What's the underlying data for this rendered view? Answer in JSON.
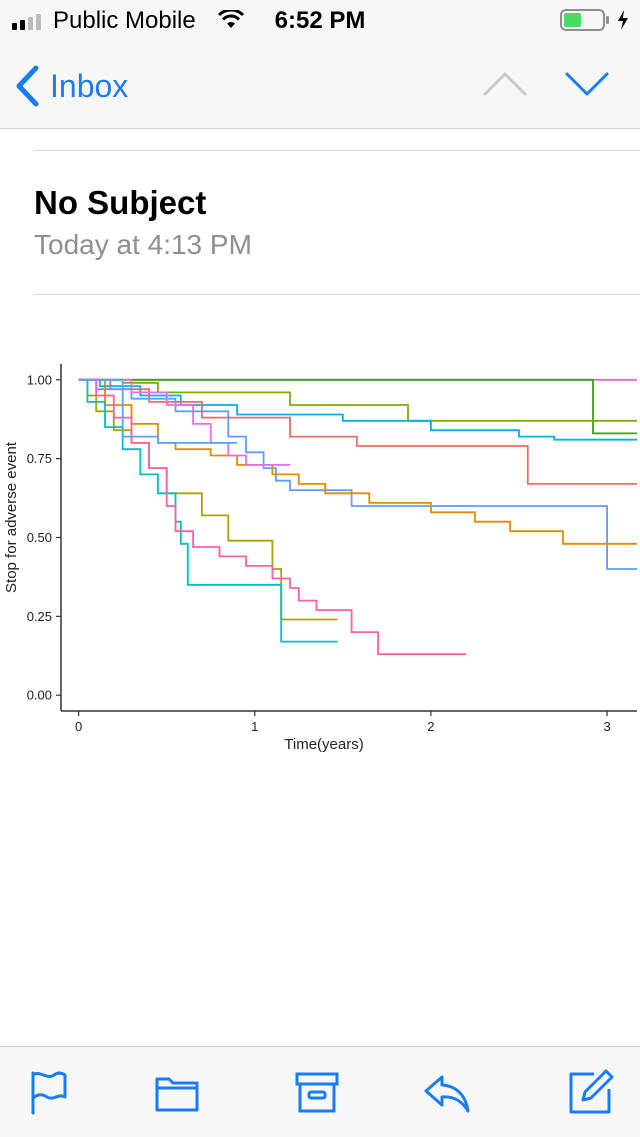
{
  "status_bar": {
    "carrier": "Public Mobile",
    "time": "6:52 PM",
    "battery_color": "#4cd964"
  },
  "nav": {
    "back_label": "Inbox",
    "accent_color": "#1a7cf5",
    "icons": [
      "chevron-left-icon",
      "chevron-up-icon",
      "chevron-down-icon"
    ]
  },
  "message": {
    "subject": "No Subject",
    "date": "Today at 4:13 PM"
  },
  "chart_data": {
    "type": "line",
    "title": "",
    "xlabel": "Time(years)",
    "ylabel": "Stop for adverse event",
    "xlim": [
      -0.1,
      3.17
    ],
    "ylim": [
      -0.05,
      1.05
    ],
    "xticks": [
      0,
      1,
      2,
      3
    ],
    "xtick_labels": [
      "0",
      "1",
      "2",
      "3"
    ],
    "yticks": [
      0,
      0.25,
      0.5,
      0.75,
      1.0
    ],
    "ytick_labels": [
      "0.00",
      "0.25",
      "0.50",
      "0.75",
      "1.00"
    ],
    "grid": false,
    "legend": "none",
    "series": [
      {
        "color": "#e868c8",
        "points": [
          [
            0,
            1.0
          ],
          [
            3.17,
            1.0
          ]
        ]
      },
      {
        "color": "#3aa310",
        "points": [
          [
            0,
            1.0
          ],
          [
            2.92,
            1.0
          ],
          [
            2.92,
            0.83
          ],
          [
            3.17,
            0.83
          ]
        ]
      },
      {
        "color": "#7cae00",
        "points": [
          [
            0,
            1.0
          ],
          [
            0.25,
            1.0
          ],
          [
            0.25,
            0.99
          ],
          [
            0.45,
            0.99
          ],
          [
            0.45,
            0.96
          ],
          [
            1.2,
            0.96
          ],
          [
            1.2,
            0.92
          ],
          [
            1.87,
            0.92
          ],
          [
            1.87,
            0.87
          ],
          [
            3.17,
            0.87
          ]
        ]
      },
      {
        "color": "#00b0e6",
        "points": [
          [
            0,
            1.0
          ],
          [
            0.12,
            1.0
          ],
          [
            0.12,
            0.98
          ],
          [
            0.35,
            0.98
          ],
          [
            0.35,
            0.95
          ],
          [
            0.58,
            0.95
          ],
          [
            0.58,
            0.92
          ],
          [
            0.9,
            0.92
          ],
          [
            0.9,
            0.89
          ],
          [
            1.5,
            0.89
          ],
          [
            1.5,
            0.87
          ],
          [
            2.0,
            0.87
          ],
          [
            2.0,
            0.84
          ],
          [
            2.5,
            0.84
          ],
          [
            2.5,
            0.82
          ],
          [
            2.7,
            0.82
          ],
          [
            2.7,
            0.81
          ],
          [
            3.17,
            0.81
          ]
        ]
      },
      {
        "color": "#f06a67",
        "points": [
          [
            0,
            1.0
          ],
          [
            0.18,
            1.0
          ],
          [
            0.18,
            0.97
          ],
          [
            0.4,
            0.97
          ],
          [
            0.4,
            0.93
          ],
          [
            0.7,
            0.93
          ],
          [
            0.7,
            0.88
          ],
          [
            1.2,
            0.88
          ],
          [
            1.2,
            0.82
          ],
          [
            1.58,
            0.82
          ],
          [
            1.58,
            0.79
          ],
          [
            2.55,
            0.79
          ],
          [
            2.55,
            0.67
          ],
          [
            3.17,
            0.67
          ]
        ]
      },
      {
        "color": "#619cff",
        "points": [
          [
            0,
            1.0
          ],
          [
            0.1,
            1.0
          ],
          [
            0.1,
            0.97
          ],
          [
            0.3,
            0.97
          ],
          [
            0.3,
            0.94
          ],
          [
            0.55,
            0.94
          ],
          [
            0.55,
            0.9
          ],
          [
            0.85,
            0.9
          ],
          [
            0.85,
            0.82
          ],
          [
            0.95,
            0.82
          ],
          [
            0.95,
            0.77
          ],
          [
            1.05,
            0.77
          ],
          [
            1.05,
            0.72
          ],
          [
            1.12,
            0.72
          ],
          [
            1.12,
            0.68
          ],
          [
            1.2,
            0.68
          ],
          [
            1.2,
            0.65
          ],
          [
            1.55,
            0.65
          ],
          [
            1.55,
            0.6
          ],
          [
            3.0,
            0.6
          ],
          [
            3.0,
            0.4
          ],
          [
            3.17,
            0.4
          ]
        ]
      },
      {
        "color": "#de8c00",
        "points": [
          [
            0,
            1.0
          ],
          [
            0.15,
            1.0
          ],
          [
            0.15,
            0.92
          ],
          [
            0.3,
            0.92
          ],
          [
            0.3,
            0.86
          ],
          [
            0.45,
            0.86
          ],
          [
            0.45,
            0.8
          ],
          [
            0.55,
            0.8
          ],
          [
            0.55,
            0.78
          ],
          [
            0.75,
            0.78
          ],
          [
            0.75,
            0.76
          ],
          [
            0.9,
            0.76
          ],
          [
            0.9,
            0.73
          ],
          [
            1.1,
            0.73
          ],
          [
            1.1,
            0.7
          ],
          [
            1.25,
            0.7
          ],
          [
            1.25,
            0.67
          ],
          [
            1.4,
            0.67
          ],
          [
            1.4,
            0.64
          ],
          [
            1.65,
            0.64
          ],
          [
            1.65,
            0.61
          ],
          [
            2.0,
            0.61
          ],
          [
            2.0,
            0.58
          ],
          [
            2.25,
            0.58
          ],
          [
            2.25,
            0.55
          ],
          [
            2.45,
            0.55
          ],
          [
            2.45,
            0.52
          ],
          [
            2.75,
            0.52
          ],
          [
            2.75,
            0.48
          ],
          [
            3.17,
            0.48
          ]
        ]
      },
      {
        "color": "#a3a500",
        "points": [
          [
            0,
            1.0
          ],
          [
            0.05,
            1.0
          ],
          [
            0.05,
            0.95
          ],
          [
            0.1,
            0.95
          ],
          [
            0.1,
            0.9
          ],
          [
            0.2,
            0.9
          ],
          [
            0.2,
            0.84
          ],
          [
            0.3,
            0.84
          ],
          [
            0.3,
            0.8
          ],
          [
            0.4,
            0.8
          ],
          [
            0.4,
            0.72
          ],
          [
            0.5,
            0.72
          ],
          [
            0.5,
            0.64
          ],
          [
            0.7,
            0.64
          ],
          [
            0.7,
            0.57
          ],
          [
            0.85,
            0.57
          ],
          [
            0.85,
            0.49
          ],
          [
            1.1,
            0.49
          ],
          [
            1.1,
            0.4
          ],
          [
            1.15,
            0.4
          ],
          [
            1.15,
            0.24
          ],
          [
            1.47,
            0.24
          ]
        ]
      },
      {
        "color": "#00bfc4",
        "points": [
          [
            0,
            1.0
          ],
          [
            0.05,
            1.0
          ],
          [
            0.05,
            0.93
          ],
          [
            0.15,
            0.93
          ],
          [
            0.15,
            0.85
          ],
          [
            0.25,
            0.85
          ],
          [
            0.25,
            0.78
          ],
          [
            0.35,
            0.78
          ],
          [
            0.35,
            0.7
          ],
          [
            0.45,
            0.7
          ],
          [
            0.45,
            0.64
          ],
          [
            0.55,
            0.64
          ],
          [
            0.55,
            0.55
          ],
          [
            0.58,
            0.55
          ],
          [
            0.58,
            0.48
          ],
          [
            0.62,
            0.48
          ],
          [
            0.62,
            0.35
          ],
          [
            0.65,
            0.35
          ],
          [
            1.15,
            0.35
          ],
          [
            1.15,
            0.17
          ],
          [
            1.47,
            0.17
          ]
        ]
      },
      {
        "color": "#fb61a7",
        "points": [
          [
            0,
            1.0
          ],
          [
            0.1,
            1.0
          ],
          [
            0.1,
            0.95
          ],
          [
            0.2,
            0.95
          ],
          [
            0.2,
            0.88
          ],
          [
            0.3,
            0.88
          ],
          [
            0.3,
            0.8
          ],
          [
            0.4,
            0.8
          ],
          [
            0.4,
            0.72
          ],
          [
            0.5,
            0.72
          ],
          [
            0.5,
            0.6
          ],
          [
            0.55,
            0.6
          ],
          [
            0.55,
            0.52
          ],
          [
            0.65,
            0.52
          ],
          [
            0.65,
            0.47
          ],
          [
            0.8,
            0.47
          ],
          [
            0.8,
            0.44
          ],
          [
            0.95,
            0.44
          ],
          [
            0.95,
            0.41
          ],
          [
            1.1,
            0.41
          ],
          [
            1.1,
            0.37
          ],
          [
            1.2,
            0.37
          ],
          [
            1.2,
            0.34
          ],
          [
            1.25,
            0.34
          ],
          [
            1.25,
            0.3
          ],
          [
            1.35,
            0.3
          ],
          [
            1.35,
            0.27
          ],
          [
            1.55,
            0.27
          ],
          [
            1.55,
            0.2
          ],
          [
            1.7,
            0.2
          ],
          [
            1.7,
            0.13
          ],
          [
            2.2,
            0.13
          ]
        ]
      },
      {
        "color": "#e76bf3",
        "points": [
          [
            0,
            1.0
          ],
          [
            0.3,
            1.0
          ],
          [
            0.3,
            0.96
          ],
          [
            0.5,
            0.96
          ],
          [
            0.5,
            0.92
          ],
          [
            0.65,
            0.92
          ],
          [
            0.65,
            0.86
          ],
          [
            0.75,
            0.86
          ],
          [
            0.75,
            0.8
          ],
          [
            0.85,
            0.8
          ],
          [
            0.85,
            0.76
          ],
          [
            0.95,
            0.76
          ],
          [
            0.95,
            0.73
          ],
          [
            1.2,
            0.73
          ]
        ]
      },
      {
        "color": "#52a6ff",
        "points": [
          [
            0,
            1.0
          ],
          [
            0.25,
            1.0
          ],
          [
            0.25,
            0.82
          ],
          [
            0.45,
            0.82
          ],
          [
            0.45,
            0.8
          ],
          [
            0.9,
            0.8
          ]
        ]
      }
    ]
  },
  "toolbar": {
    "icons": [
      "flag-icon",
      "folder-icon",
      "archive-icon",
      "reply-icon",
      "compose-icon"
    ]
  }
}
